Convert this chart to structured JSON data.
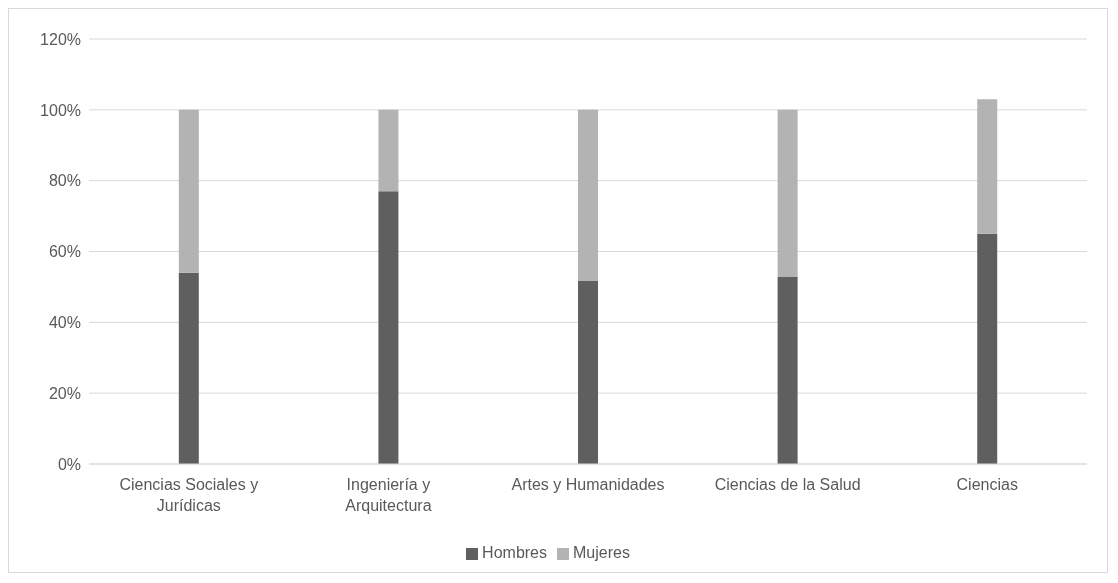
{
  "chart_data": {
    "type": "bar",
    "stacked": true,
    "categories": [
      "Ciencias Sociales y Jurídicas",
      "Ingeniería y Arquitectura",
      "Artes y Humanidades",
      "Ciencias de la Salud",
      "Ciencias"
    ],
    "series": [
      {
        "name": "Hombres",
        "color": "#5f5f5f",
        "values": [
          54,
          77,
          51.7,
          52.8,
          65
        ]
      },
      {
        "name": "Mujeres",
        "color": "#b3b3b3",
        "values": [
          46,
          23,
          48.3,
          47.2,
          38
        ]
      }
    ],
    "ylim": [
      0,
      120
    ],
    "yticks": [
      {
        "value": 0,
        "label": "0%"
      },
      {
        "value": 20,
        "label": "20%"
      },
      {
        "value": 40,
        "label": "40%"
      },
      {
        "value": 60,
        "label": "60%"
      },
      {
        "value": 80,
        "label": "80%"
      },
      {
        "value": 100,
        "label": "100%"
      },
      {
        "value": 120,
        "label": "120%"
      }
    ],
    "grid": "y",
    "legend": "bottom"
  }
}
